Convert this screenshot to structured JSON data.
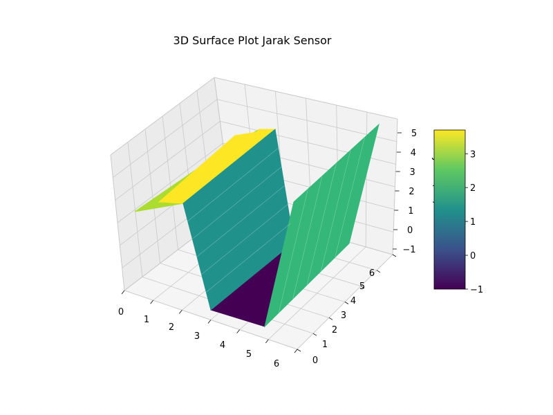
{
  "chart_data": {
    "type": "surface3d",
    "title": "3D Surface Plot Jarak Sensor",
    "xlabel": "",
    "ylabel": "",
    "zlabel": "Jarak (cm)",
    "x": [
      0,
      1,
      2,
      3,
      4,
      5,
      6
    ],
    "y": [
      0,
      1,
      2,
      3,
      4,
      5,
      6
    ],
    "profile_x": [
      0,
      1,
      2,
      3,
      4,
      5,
      6
    ],
    "profile_z": [
      3,
      3.7,
      3.7,
      1.5,
      -1,
      -1,
      2.3
    ],
    "front_edge_z": [
      3,
      3.7,
      3.7,
      1.5,
      -1,
      -1,
      2.3
    ],
    "back_edge_z": [
      3,
      3.7,
      3.7,
      1.5,
      -1,
      1.4,
      5.1
    ],
    "xlim": [
      0,
      6
    ],
    "ylim": [
      0,
      6
    ],
    "zlim": [
      -1,
      5
    ],
    "xticks": [
      "0",
      "1",
      "2",
      "3",
      "4",
      "5",
      "6"
    ],
    "yticks": [
      "0",
      "1",
      "2",
      "3",
      "4",
      "5",
      "6"
    ],
    "zticks": [
      "−1",
      "0",
      "1",
      "2",
      "3",
      "4",
      "5"
    ],
    "colormap": "viridis",
    "colorbar": {
      "range": [
        -1,
        3.7
      ],
      "ticks": [
        "−1",
        "0",
        "1",
        "2",
        "3"
      ],
      "tick_values": [
        -1,
        0,
        1,
        2,
        3
      ]
    },
    "colors": {
      "yellow": "#fde725",
      "yellow_green": "#addc30",
      "teal": "#21918c",
      "green": "#35b779",
      "purple": "#440154",
      "pane": "#f2f2f2",
      "grid": "#c8c8c8"
    }
  }
}
